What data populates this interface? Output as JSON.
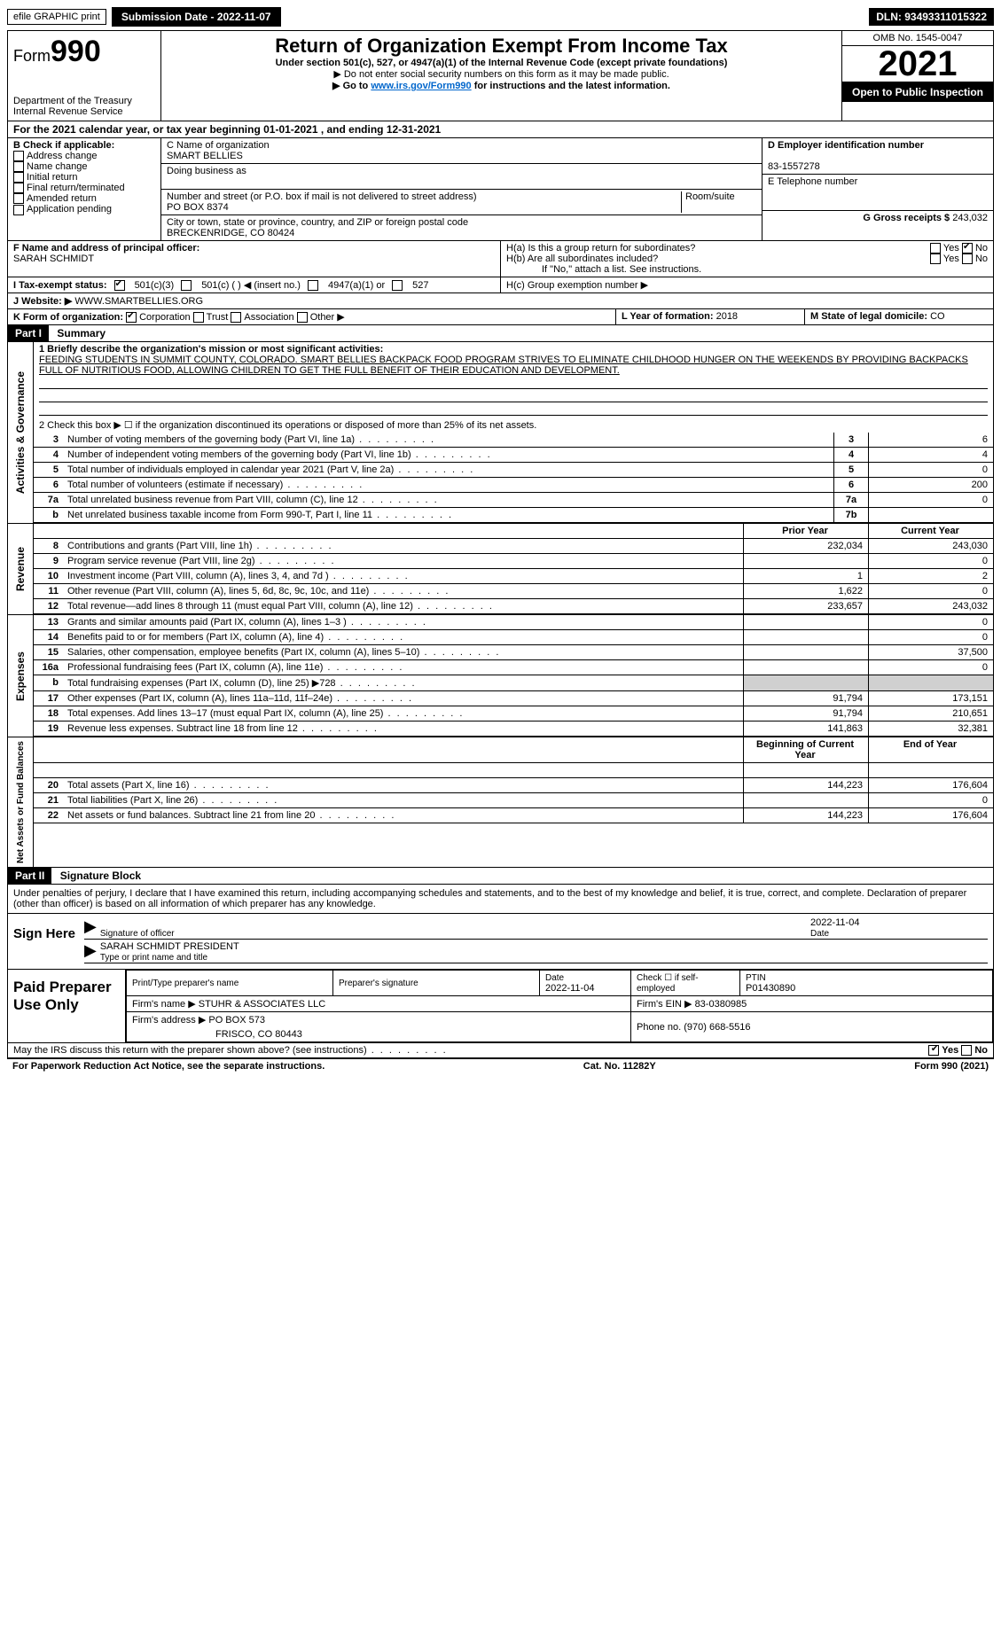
{
  "topbar": {
    "efile": "efile GRAPHIC print",
    "submission": "Submission Date - 2022-11-07",
    "dln": "DLN: 93493311015322"
  },
  "header": {
    "form_label": "Form",
    "form_number": "990",
    "dept": "Department of the Treasury",
    "irs": "Internal Revenue Service",
    "title": "Return of Organization Exempt From Income Tax",
    "subtitle": "Under section 501(c), 527, or 4947(a)(1) of the Internal Revenue Code (except private foundations)",
    "note1": "▶ Do not enter social security numbers on this form as it may be made public.",
    "note2_pre": "▶ Go to ",
    "note2_link": "www.irs.gov/Form990",
    "note2_post": " for instructions and the latest information.",
    "omb": "OMB No. 1545-0047",
    "year": "2021",
    "open": "Open to Public Inspection"
  },
  "period": "For the 2021 calendar year, or tax year beginning 01-01-2021    , and ending 12-31-2021",
  "boxB": {
    "label": "B Check if applicable:",
    "items": [
      "Address change",
      "Name change",
      "Initial return",
      "Final return/terminated",
      "Amended return",
      "Application pending"
    ]
  },
  "boxC": {
    "label_name": "C Name of organization",
    "name": "SMART BELLIES",
    "dba_label": "Doing business as",
    "addr_label": "Number and street (or P.O. box if mail is not delivered to street address)",
    "room_label": "Room/suite",
    "addr": "PO BOX 8374",
    "city_label": "City or town, state or province, country, and ZIP or foreign postal code",
    "city": "BRECKENRIDGE, CO  80424"
  },
  "boxD": {
    "label": "D Employer identification number",
    "value": "83-1557278"
  },
  "boxE": {
    "label": "E Telephone number",
    "value": ""
  },
  "boxG": {
    "label": "G Gross receipts $",
    "value": "243,032"
  },
  "boxF": {
    "label": "F  Name and address of principal officer:",
    "value": "SARAH SCHMIDT"
  },
  "boxH": {
    "a_label": "H(a)  Is this a group return for subordinates?",
    "a_yes": "Yes",
    "a_no": "No",
    "b_label": "H(b)  Are all subordinates included?",
    "b_yes": "Yes",
    "b_no": "No",
    "b_note": "If \"No,\" attach a list. See instructions.",
    "c_label": "H(c)  Group exemption number ▶"
  },
  "taxexempt": {
    "i_label": "I   Tax-exempt status:",
    "c3": "501(c)(3)",
    "c_blank": "501(c) (   ) ◀ (insert no.)",
    "a1": "4947(a)(1) or",
    "s527": "527"
  },
  "website": {
    "label": "J   Website: ▶",
    "value": "WWW.SMARTBELLIES.ORG"
  },
  "boxK": {
    "label": "K Form of organization:",
    "corp": "Corporation",
    "trust": "Trust",
    "assoc": "Association",
    "other": "Other ▶"
  },
  "boxL": {
    "label": "L Year of formation:",
    "value": "2018"
  },
  "boxM": {
    "label": "M State of legal domicile:",
    "value": "CO"
  },
  "part1": {
    "header": "Part I",
    "title": "Summary",
    "line1_label": "1  Briefly describe the organization's mission or most significant activities:",
    "mission": "FEEDING STUDENTS IN SUMMIT COUNTY, COLORADO. SMART BELLIES BACKPACK FOOD PROGRAM STRIVES TO ELIMINATE CHILDHOOD HUNGER ON THE WEEKENDS BY PROVIDING BACKPACKS FULL OF NUTRITIOUS FOOD, ALLOWING CHILDREN TO GET THE FULL BENEFIT OF THEIR EDUCATION AND DEVELOPMENT.",
    "line2": "2   Check this box ▶ ☐  if the organization discontinued its operations or disposed of more than 25% of its net assets.",
    "side_gov": "Activities & Governance",
    "side_rev": "Revenue",
    "side_exp": "Expenses",
    "side_net": "Net Assets or Fund Balances"
  },
  "gov_lines": [
    {
      "n": "3",
      "d": "Number of voting members of the governing body (Part VI, line 1a)",
      "b": "3",
      "v": "6"
    },
    {
      "n": "4",
      "d": "Number of independent voting members of the governing body (Part VI, line 1b)",
      "b": "4",
      "v": "4"
    },
    {
      "n": "5",
      "d": "Total number of individuals employed in calendar year 2021 (Part V, line 2a)",
      "b": "5",
      "v": "0"
    },
    {
      "n": "6",
      "d": "Total number of volunteers (estimate if necessary)",
      "b": "6",
      "v": "200"
    },
    {
      "n": "7a",
      "d": "Total unrelated business revenue from Part VIII, column (C), line 12",
      "b": "7a",
      "v": "0"
    },
    {
      "n": "b",
      "d": "Net unrelated business taxable income from Form 990-T, Part I, line 11",
      "b": "7b",
      "v": ""
    }
  ],
  "col_headers": {
    "prior": "Prior Year",
    "current": "Current Year",
    "begin": "Beginning of Current Year",
    "end": "End of Year"
  },
  "rev_lines": [
    {
      "n": "8",
      "d": "Contributions and grants (Part VIII, line 1h)",
      "p": "232,034",
      "c": "243,030"
    },
    {
      "n": "9",
      "d": "Program service revenue (Part VIII, line 2g)",
      "p": "",
      "c": "0"
    },
    {
      "n": "10",
      "d": "Investment income (Part VIII, column (A), lines 3, 4, and 7d )",
      "p": "1",
      "c": "2"
    },
    {
      "n": "11",
      "d": "Other revenue (Part VIII, column (A), lines 5, 6d, 8c, 9c, 10c, and 11e)",
      "p": "1,622",
      "c": "0"
    },
    {
      "n": "12",
      "d": "Total revenue—add lines 8 through 11 (must equal Part VIII, column (A), line 12)",
      "p": "233,657",
      "c": "243,032"
    }
  ],
  "exp_lines": [
    {
      "n": "13",
      "d": "Grants and similar amounts paid (Part IX, column (A), lines 1–3 )",
      "p": "",
      "c": "0"
    },
    {
      "n": "14",
      "d": "Benefits paid to or for members (Part IX, column (A), line 4)",
      "p": "",
      "c": "0"
    },
    {
      "n": "15",
      "d": "Salaries, other compensation, employee benefits (Part IX, column (A), lines 5–10)",
      "p": "",
      "c": "37,500"
    },
    {
      "n": "16a",
      "d": "Professional fundraising fees (Part IX, column (A), line 11e)",
      "p": "",
      "c": "0"
    },
    {
      "n": "b",
      "d": "Total fundraising expenses (Part IX, column (D), line 25) ▶728",
      "p": "SHADE",
      "c": "SHADE"
    },
    {
      "n": "17",
      "d": "Other expenses (Part IX, column (A), lines 11a–11d, 11f–24e)",
      "p": "91,794",
      "c": "173,151"
    },
    {
      "n": "18",
      "d": "Total expenses. Add lines 13–17 (must equal Part IX, column (A), line 25)",
      "p": "91,794",
      "c": "210,651"
    },
    {
      "n": "19",
      "d": "Revenue less expenses. Subtract line 18 from line 12",
      "p": "141,863",
      "c": "32,381"
    }
  ],
  "net_lines": [
    {
      "n": "20",
      "d": "Total assets (Part X, line 16)",
      "p": "144,223",
      "c": "176,604"
    },
    {
      "n": "21",
      "d": "Total liabilities (Part X, line 26)",
      "p": "",
      "c": "0"
    },
    {
      "n": "22",
      "d": "Net assets or fund balances. Subtract line 21 from line 20",
      "p": "144,223",
      "c": "176,604"
    }
  ],
  "part2": {
    "header": "Part II",
    "title": "Signature Block",
    "penalty": "Under penalties of perjury, I declare that I have examined this return, including accompanying schedules and statements, and to the best of my knowledge and belief, it is true, correct, and complete. Declaration of preparer (other than officer) is based on all information of which preparer has any knowledge."
  },
  "sign": {
    "label": "Sign Here",
    "sig_label": "Signature of officer",
    "date_label": "Date",
    "date": "2022-11-04",
    "name": "SARAH SCHMIDT  PRESIDENT",
    "name_label": "Type or print name and title"
  },
  "paid": {
    "label": "Paid Preparer Use Only",
    "h_name": "Print/Type preparer's name",
    "h_sig": "Preparer's signature",
    "h_date": "Date",
    "date": "2022-11-04",
    "h_check": "Check ☐ if self-employed",
    "h_ptin": "PTIN",
    "ptin": "P01430890",
    "firm_label": "Firm's name    ▶",
    "firm": "STUHR & ASSOCIATES LLC",
    "ein_label": "Firm's EIN ▶",
    "ein": "83-0380985",
    "addr_label": "Firm's address ▶",
    "addr1": "PO BOX 573",
    "addr2": "FRISCO, CO  80443",
    "phone_label": "Phone no.",
    "phone": "(970) 668-5516"
  },
  "discuss": {
    "text": "May the IRS discuss this return with the preparer shown above? (see instructions)",
    "yes": "Yes",
    "no": "No"
  },
  "footer": {
    "pra": "For Paperwork Reduction Act Notice, see the separate instructions.",
    "cat": "Cat. No. 11282Y",
    "form": "Form 990 (2021)"
  }
}
